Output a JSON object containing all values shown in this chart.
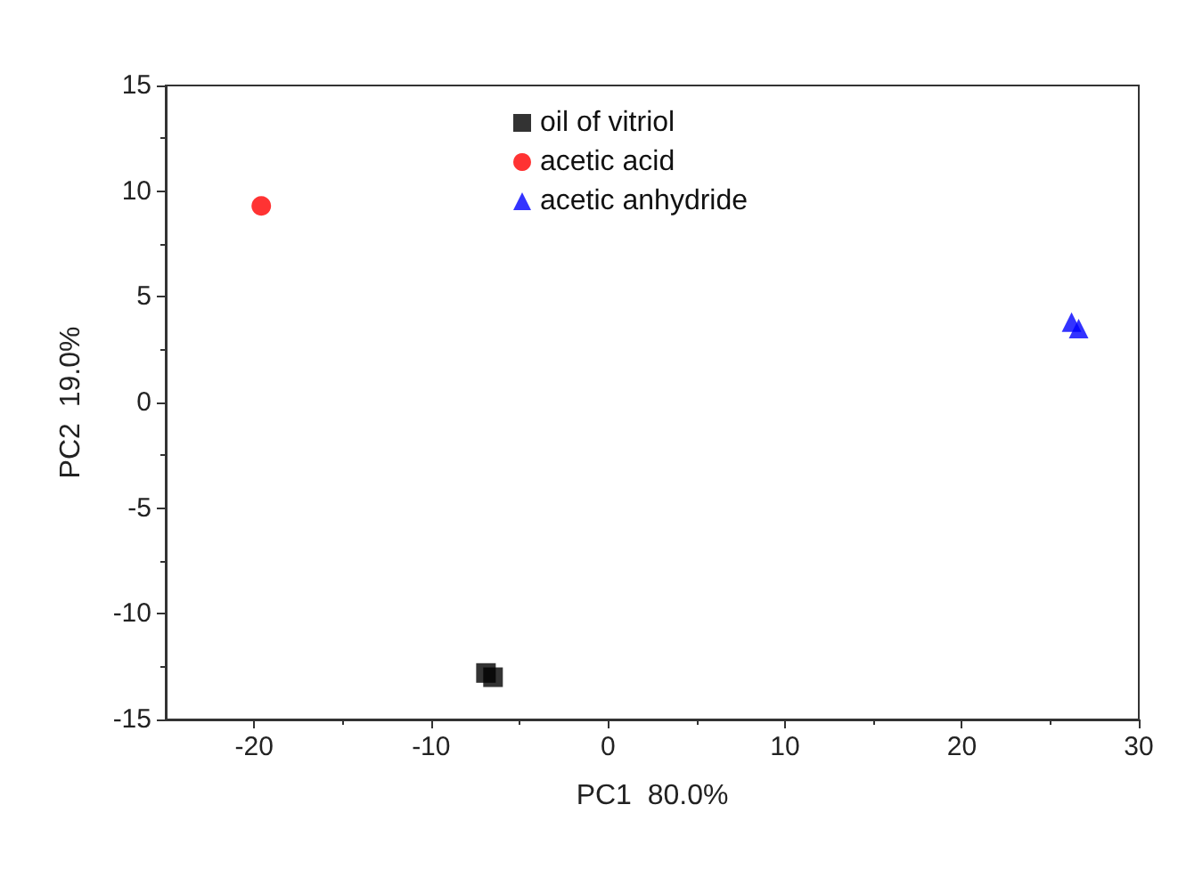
{
  "chart_data": {
    "type": "scatter",
    "xlabel": "PC1  80.0%",
    "ylabel": "PC2  19.0%",
    "xlim": [
      -25,
      30
    ],
    "xticks": [
      -20,
      -10,
      0,
      10,
      20,
      30
    ],
    "ylim": [
      -15,
      15
    ],
    "yticks": [
      -15,
      -10,
      -5,
      0,
      5,
      10,
      15
    ],
    "grid": false,
    "legend": "top",
    "series": [
      {
        "name": "oil of vitriol",
        "color": "#000000",
        "marker": "square",
        "x": [
          -6.9,
          -6.5
        ],
        "values": [
          -12.8,
          -13.0
        ]
      },
      {
        "name": "acetic acid",
        "color": "#ff0000",
        "marker": "circle",
        "x": [
          -19.6
        ],
        "values": [
          9.3
        ]
      },
      {
        "name": "acetic anhydride",
        "color": "#0000ff",
        "marker": "triangle",
        "x": [
          26.2,
          26.6
        ],
        "values": [
          3.8,
          3.5
        ]
      }
    ]
  }
}
